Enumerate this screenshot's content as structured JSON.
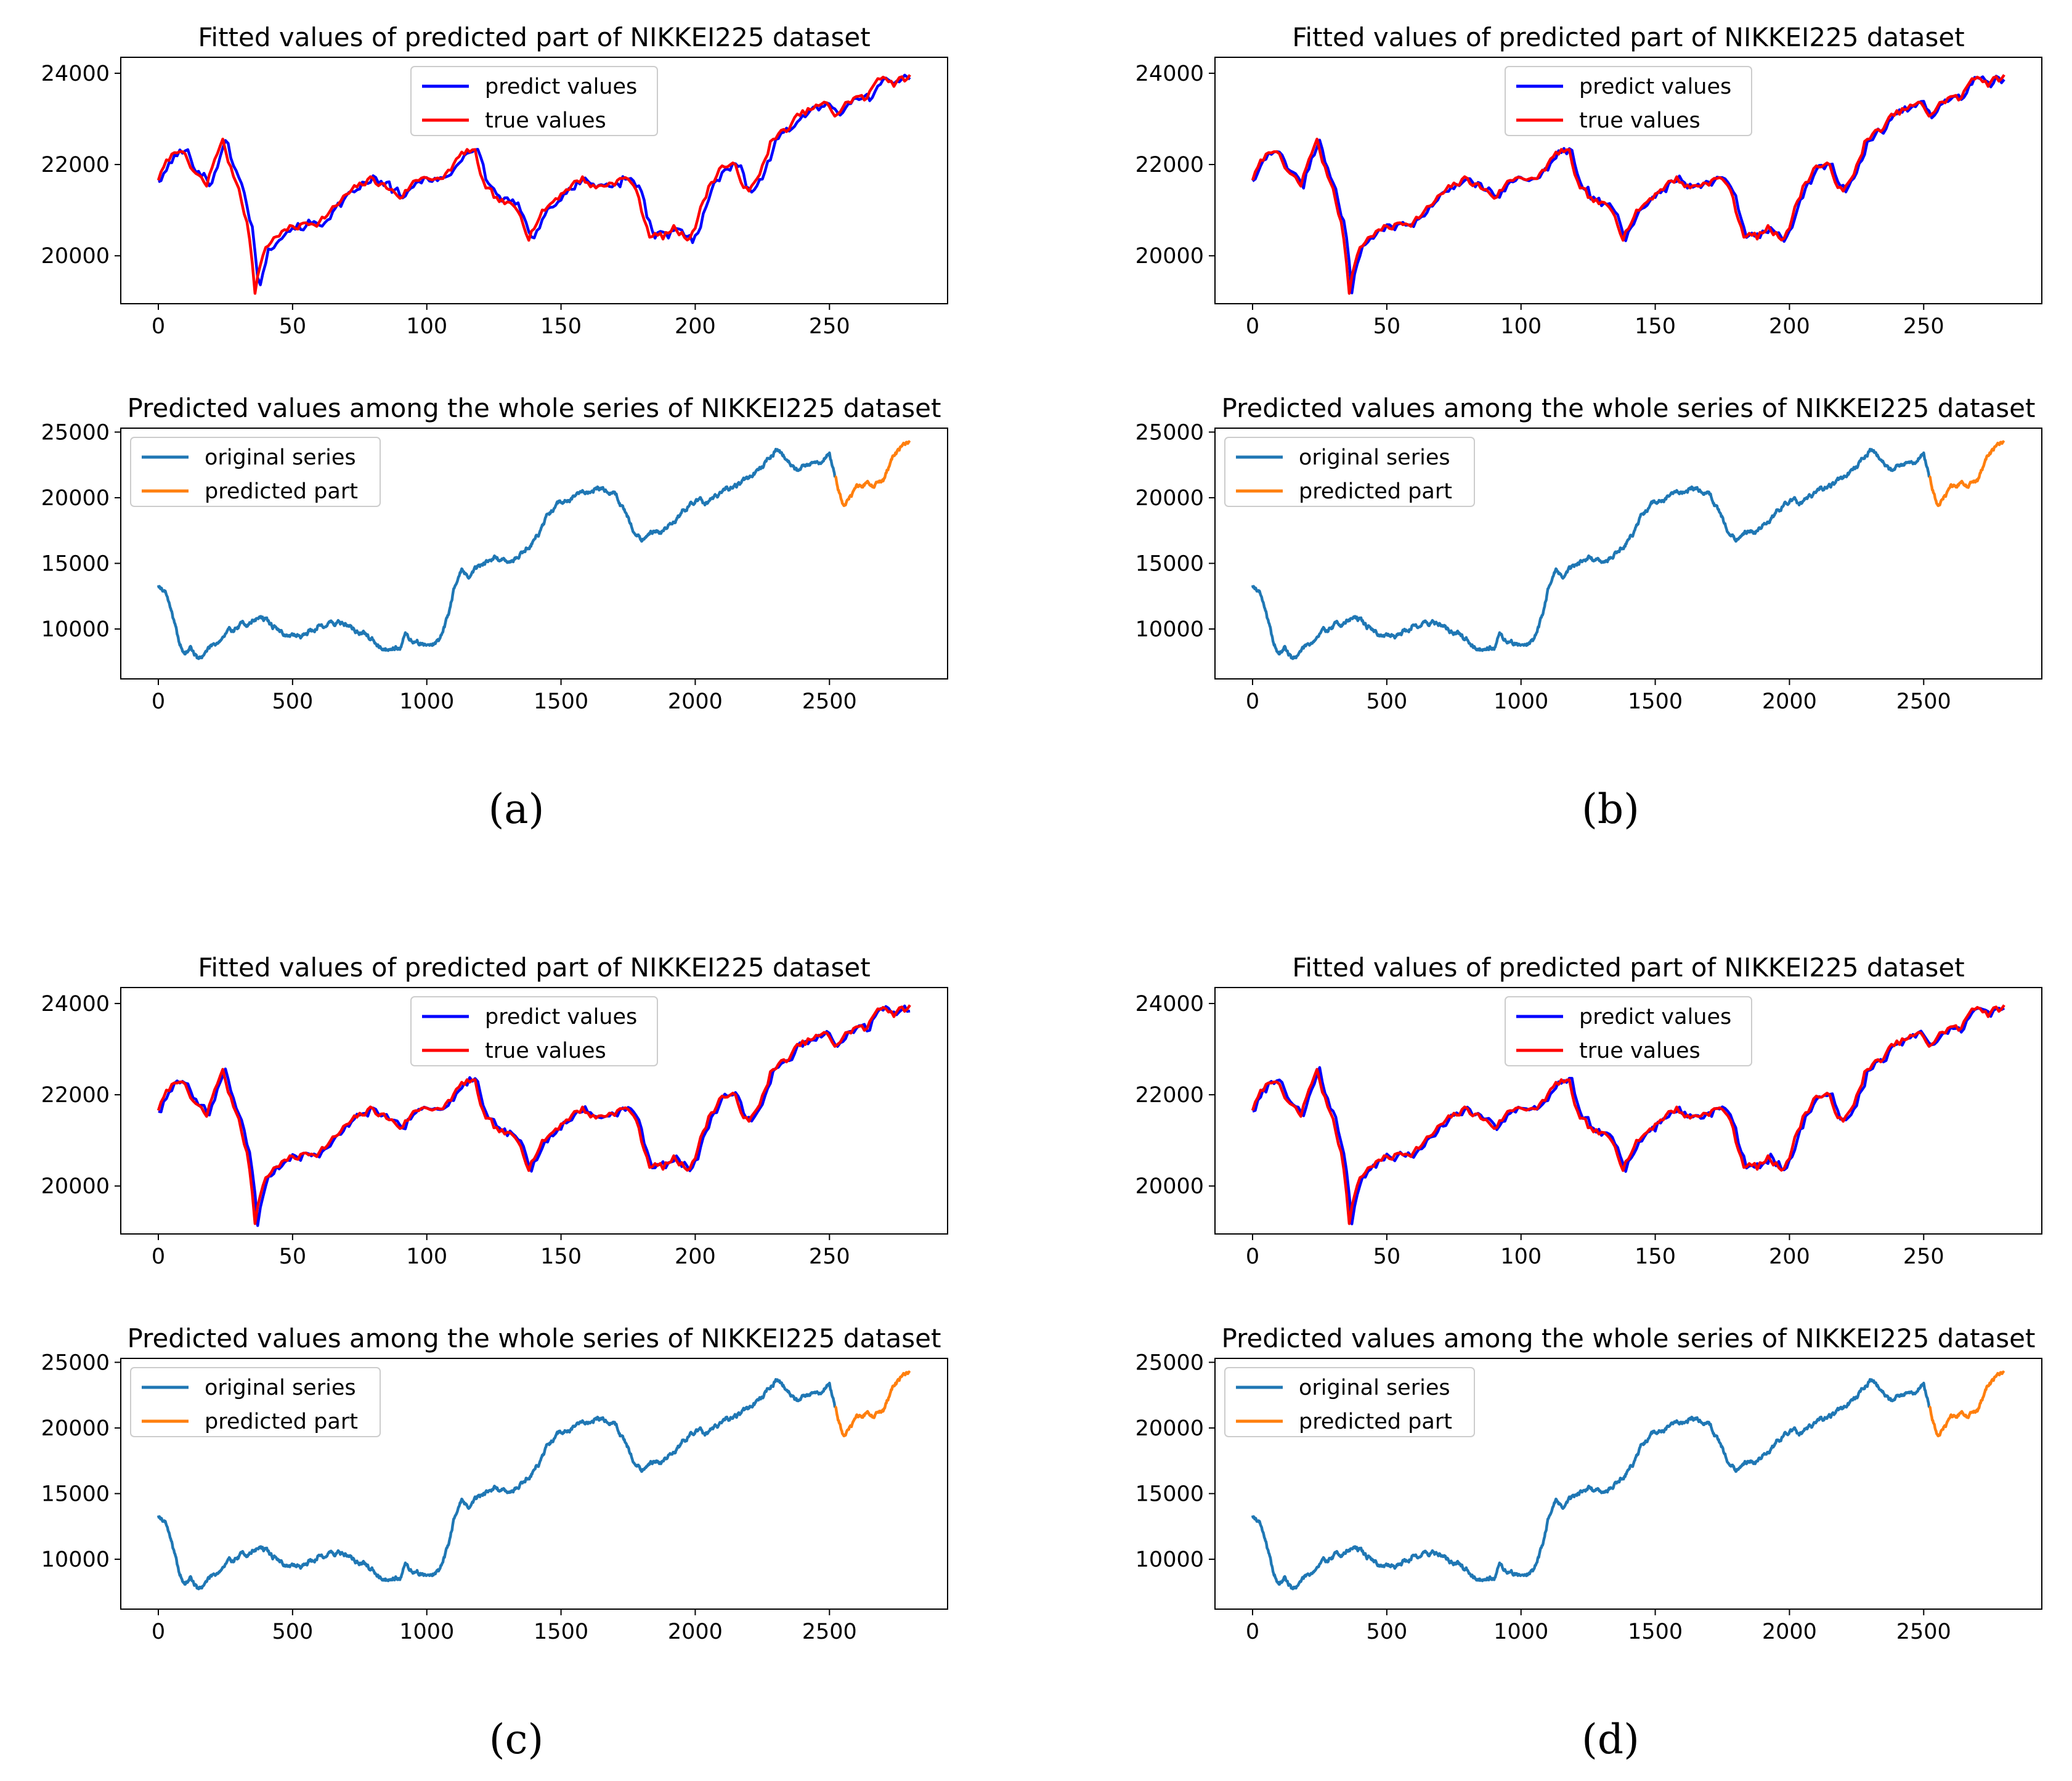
{
  "figure": {
    "dataset": "NIKKEI225",
    "panel_labels": [
      "(a)",
      "(b)",
      "(c)",
      "(d)"
    ]
  },
  "chart_data": [
    {
      "panel": "(a)",
      "fitted": {
        "type": "line",
        "title": "Fitted values of predicted part of NIKKEI225 dataset",
        "xlim": [
          -14,
          294
        ],
        "ylim": [
          18950,
          24350
        ],
        "xticks": [
          "0",
          "50",
          "100",
          "150",
          "200",
          "250"
        ],
        "yticks": [
          "20000",
          "22000",
          "24000"
        ],
        "xtick_values": [
          0,
          50,
          100,
          150,
          200,
          250
        ],
        "ytick_values": [
          20000,
          22000,
          24000
        ],
        "legend_position": "upper-center",
        "series": [
          {
            "name": "predict values",
            "color": "#0000ff",
            "variant": 0
          },
          {
            "name": "true values",
            "color": "#ff0000",
            "variant": 0
          }
        ]
      },
      "whole": {
        "type": "line",
        "title": "Predicted values among the whole series of NIKKEI225 dataset",
        "xlim": [
          -140,
          2940
        ],
        "ylim": [
          6200,
          25300
        ],
        "xticks": [
          "0",
          "500",
          "1000",
          "1500",
          "2000",
          "2500"
        ],
        "yticks": [
          "10000",
          "15000",
          "20000",
          "25000"
        ],
        "xtick_values": [
          0,
          500,
          1000,
          1500,
          2000,
          2500
        ],
        "ytick_values": [
          10000,
          15000,
          20000,
          25000
        ],
        "legend_position": "upper-left",
        "series": [
          {
            "name": "original series",
            "color": "#1f77b4",
            "x_range": [
              0,
              2800
            ]
          },
          {
            "name": "predicted part",
            "color": "#ff7f0e",
            "x_range": [
              2520,
              2800
            ]
          }
        ]
      }
    },
    {
      "panel": "(b)",
      "fitted": {
        "type": "line",
        "title": "Fitted values of predicted part of NIKKEI225 dataset",
        "xlim": [
          -14,
          294
        ],
        "ylim": [
          18950,
          24350
        ],
        "xticks": [
          "0",
          "50",
          "100",
          "150",
          "200",
          "250"
        ],
        "yticks": [
          "20000",
          "22000",
          "24000"
        ],
        "xtick_values": [
          0,
          50,
          100,
          150,
          200,
          250
        ],
        "ytick_values": [
          20000,
          22000,
          24000
        ],
        "legend_position": "upper-center",
        "series": [
          {
            "name": "predict values",
            "color": "#0000ff",
            "variant": 1
          },
          {
            "name": "true values",
            "color": "#ff0000",
            "variant": 1
          }
        ]
      },
      "whole": {
        "type": "line",
        "title": "Predicted values among the whole series of NIKKEI225 dataset",
        "xlim": [
          -140,
          2940
        ],
        "ylim": [
          6200,
          25300
        ],
        "xticks": [
          "0",
          "500",
          "1000",
          "1500",
          "2000",
          "2500"
        ],
        "yticks": [
          "10000",
          "15000",
          "20000",
          "25000"
        ],
        "xtick_values": [
          0,
          500,
          1000,
          1500,
          2000,
          2500
        ],
        "ytick_values": [
          10000,
          15000,
          20000,
          25000
        ],
        "legend_position": "upper-left",
        "series": [
          {
            "name": "original series",
            "color": "#1f77b4",
            "x_range": [
              0,
              2800
            ]
          },
          {
            "name": "predicted part",
            "color": "#ff7f0e",
            "x_range": [
              2520,
              2800
            ]
          }
        ]
      }
    },
    {
      "panel": "(c)",
      "fitted": {
        "type": "line",
        "title": "Fitted values of predicted part of NIKKEI225 dataset",
        "xlim": [
          -14,
          294
        ],
        "ylim": [
          18950,
          24350
        ],
        "xticks": [
          "0",
          "50",
          "100",
          "150",
          "200",
          "250"
        ],
        "yticks": [
          "20000",
          "22000",
          "24000"
        ],
        "xtick_values": [
          0,
          50,
          100,
          150,
          200,
          250
        ],
        "ytick_values": [
          20000,
          22000,
          24000
        ],
        "legend_position": "upper-center",
        "series": [
          {
            "name": "predict values",
            "color": "#0000ff",
            "variant": 2
          },
          {
            "name": "true values",
            "color": "#ff0000",
            "variant": 2
          }
        ]
      },
      "whole": {
        "type": "line",
        "title": "Predicted values among the whole series of NIKKEI225 dataset",
        "xlim": [
          -140,
          2940
        ],
        "ylim": [
          6200,
          25300
        ],
        "xticks": [
          "0",
          "500",
          "1000",
          "1500",
          "2000",
          "2500"
        ],
        "yticks": [
          "10000",
          "15000",
          "20000",
          "25000"
        ],
        "xtick_values": [
          0,
          500,
          1000,
          1500,
          2000,
          2500
        ],
        "ytick_values": [
          10000,
          15000,
          20000,
          25000
        ],
        "legend_position": "upper-left",
        "series": [
          {
            "name": "original series",
            "color": "#1f77b4",
            "x_range": [
              0,
              2800
            ]
          },
          {
            "name": "predicted part",
            "color": "#ff7f0e",
            "x_range": [
              2520,
              2800
            ]
          }
        ]
      }
    },
    {
      "panel": "(d)",
      "fitted": {
        "type": "line",
        "title": "Fitted values of predicted part of NIKKEI225 dataset",
        "xlim": [
          -14,
          294
        ],
        "ylim": [
          18950,
          24350
        ],
        "xticks": [
          "0",
          "50",
          "100",
          "150",
          "200",
          "250"
        ],
        "yticks": [
          "20000",
          "22000",
          "24000"
        ],
        "xtick_values": [
          0,
          50,
          100,
          150,
          200,
          250
        ],
        "ytick_values": [
          20000,
          22000,
          24000
        ],
        "legend_position": "upper-center",
        "series": [
          {
            "name": "predict values",
            "color": "#0000ff",
            "variant": 3
          },
          {
            "name": "true values",
            "color": "#ff0000",
            "variant": 3
          }
        ]
      },
      "whole": {
        "type": "line",
        "title": "Predicted values among the whole series of NIKKEI225 dataset",
        "xlim": [
          -140,
          2940
        ],
        "ylim": [
          6200,
          25300
        ],
        "xticks": [
          "0",
          "500",
          "1000",
          "1500",
          "2000",
          "2500"
        ],
        "yticks": [
          "10000",
          "15000",
          "20000",
          "25000"
        ],
        "xtick_values": [
          0,
          500,
          1000,
          1500,
          2000,
          2500
        ],
        "ytick_values": [
          10000,
          15000,
          20000,
          25000
        ],
        "legend_position": "upper-left",
        "series": [
          {
            "name": "original series",
            "color": "#1f77b4",
            "x_range": [
              0,
              2800
            ]
          },
          {
            "name": "predicted part",
            "color": "#ff7f0e",
            "x_range": [
              2520,
              2800
            ]
          }
        ]
      }
    }
  ],
  "true_series_keypoints": [
    [
      0,
      21700
    ],
    [
      4,
      22100
    ],
    [
      8,
      22400
    ],
    [
      12,
      21900
    ],
    [
      15,
      21700
    ],
    [
      18,
      21500
    ],
    [
      22,
      22300
    ],
    [
      24,
      22500
    ],
    [
      27,
      21900
    ],
    [
      30,
      21500
    ],
    [
      33,
      20800
    ],
    [
      35,
      19900
    ],
    [
      36,
      19200
    ],
    [
      38,
      19800
    ],
    [
      40,
      20200
    ],
    [
      45,
      20500
    ],
    [
      50,
      20600
    ],
    [
      55,
      20700
    ],
    [
      60,
      20800
    ],
    [
      65,
      21000
    ],
    [
      70,
      21300
    ],
    [
      75,
      21500
    ],
    [
      80,
      21700
    ],
    [
      85,
      21500
    ],
    [
      90,
      21300
    ],
    [
      95,
      21600
    ],
    [
      100,
      21800
    ],
    [
      105,
      21600
    ],
    [
      110,
      22000
    ],
    [
      115,
      22300
    ],
    [
      118,
      22200
    ],
    [
      122,
      21400
    ],
    [
      126,
      21200
    ],
    [
      130,
      21100
    ],
    [
      135,
      20900
    ],
    [
      138,
      20500
    ],
    [
      142,
      20900
    ],
    [
      147,
      21200
    ],
    [
      152,
      21500
    ],
    [
      158,
      21700
    ],
    [
      163,
      21500
    ],
    [
      168,
      21600
    ],
    [
      172,
      21700
    ],
    [
      177,
      21600
    ],
    [
      180,
      21000
    ],
    [
      183,
      20500
    ],
    [
      188,
      20400
    ],
    [
      192,
      20600
    ],
    [
      197,
      20400
    ],
    [
      200,
      20700
    ],
    [
      205,
      21500
    ],
    [
      210,
      22000
    ],
    [
      215,
      21900
    ],
    [
      220,
      21400
    ],
    [
      223,
      21600
    ],
    [
      228,
      22500
    ],
    [
      233,
      22700
    ],
    [
      238,
      23000
    ],
    [
      243,
      23200
    ],
    [
      248,
      23300
    ],
    [
      252,
      23100
    ],
    [
      256,
      23300
    ],
    [
      260,
      23500
    ],
    [
      264,
      23400
    ],
    [
      268,
      23900
    ],
    [
      270,
      24000
    ],
    [
      274,
      23800
    ],
    [
      278,
      23850
    ],
    [
      280,
      23900
    ]
  ],
  "whole_series_keypoints": [
    [
      0,
      13400
    ],
    [
      25,
      13000
    ],
    [
      50,
      11500
    ],
    [
      75,
      9000
    ],
    [
      100,
      8000
    ],
    [
      120,
      8600
    ],
    [
      150,
      7600
    ],
    [
      175,
      8200
    ],
    [
      200,
      8800
    ],
    [
      250,
      9600
    ],
    [
      300,
      10200
    ],
    [
      350,
      10600
    ],
    [
      380,
      11000
    ],
    [
      400,
      10600
    ],
    [
      450,
      9900
    ],
    [
      500,
      9400
    ],
    [
      550,
      9700
    ],
    [
      600,
      10300
    ],
    [
      650,
      10600
    ],
    [
      700,
      10300
    ],
    [
      750,
      9700
    ],
    [
      800,
      9100
    ],
    [
      850,
      8600
    ],
    [
      900,
      8900
    ],
    [
      920,
      9700
    ],
    [
      950,
      9000
    ],
    [
      1000,
      8800
    ],
    [
      1050,
      9200
    ],
    [
      1080,
      11000
    ],
    [
      1100,
      13000
    ],
    [
      1130,
      14500
    ],
    [
      1160,
      14000
    ],
    [
      1200,
      15000
    ],
    [
      1250,
      15500
    ],
    [
      1300,
      15000
    ],
    [
      1350,
      15800
    ],
    [
      1400,
      16800
    ],
    [
      1450,
      18500
    ],
    [
      1500,
      19500
    ],
    [
      1550,
      20000
    ],
    [
      1600,
      20500
    ],
    [
      1650,
      20800
    ],
    [
      1700,
      20500
    ],
    [
      1750,
      18500
    ],
    [
      1780,
      17000
    ],
    [
      1800,
      16800
    ],
    [
      1850,
      17200
    ],
    [
      1900,
      17800
    ],
    [
      1950,
      18800
    ],
    [
      2000,
      19800
    ],
    [
      2050,
      19500
    ],
    [
      2100,
      20300
    ],
    [
      2150,
      20800
    ],
    [
      2200,
      21400
    ],
    [
      2250,
      22200
    ],
    [
      2300,
      23700
    ],
    [
      2330,
      23200
    ],
    [
      2380,
      22000
    ],
    [
      2420,
      22500
    ],
    [
      2460,
      22800
    ],
    [
      2500,
      23500
    ],
    [
      2520,
      21700
    ],
    [
      2555,
      19200
    ],
    [
      2600,
      20600
    ],
    [
      2650,
      21000
    ],
    [
      2700,
      21300
    ],
    [
      2740,
      23000
    ],
    [
      2770,
      23800
    ],
    [
      2800,
      23900
    ]
  ]
}
